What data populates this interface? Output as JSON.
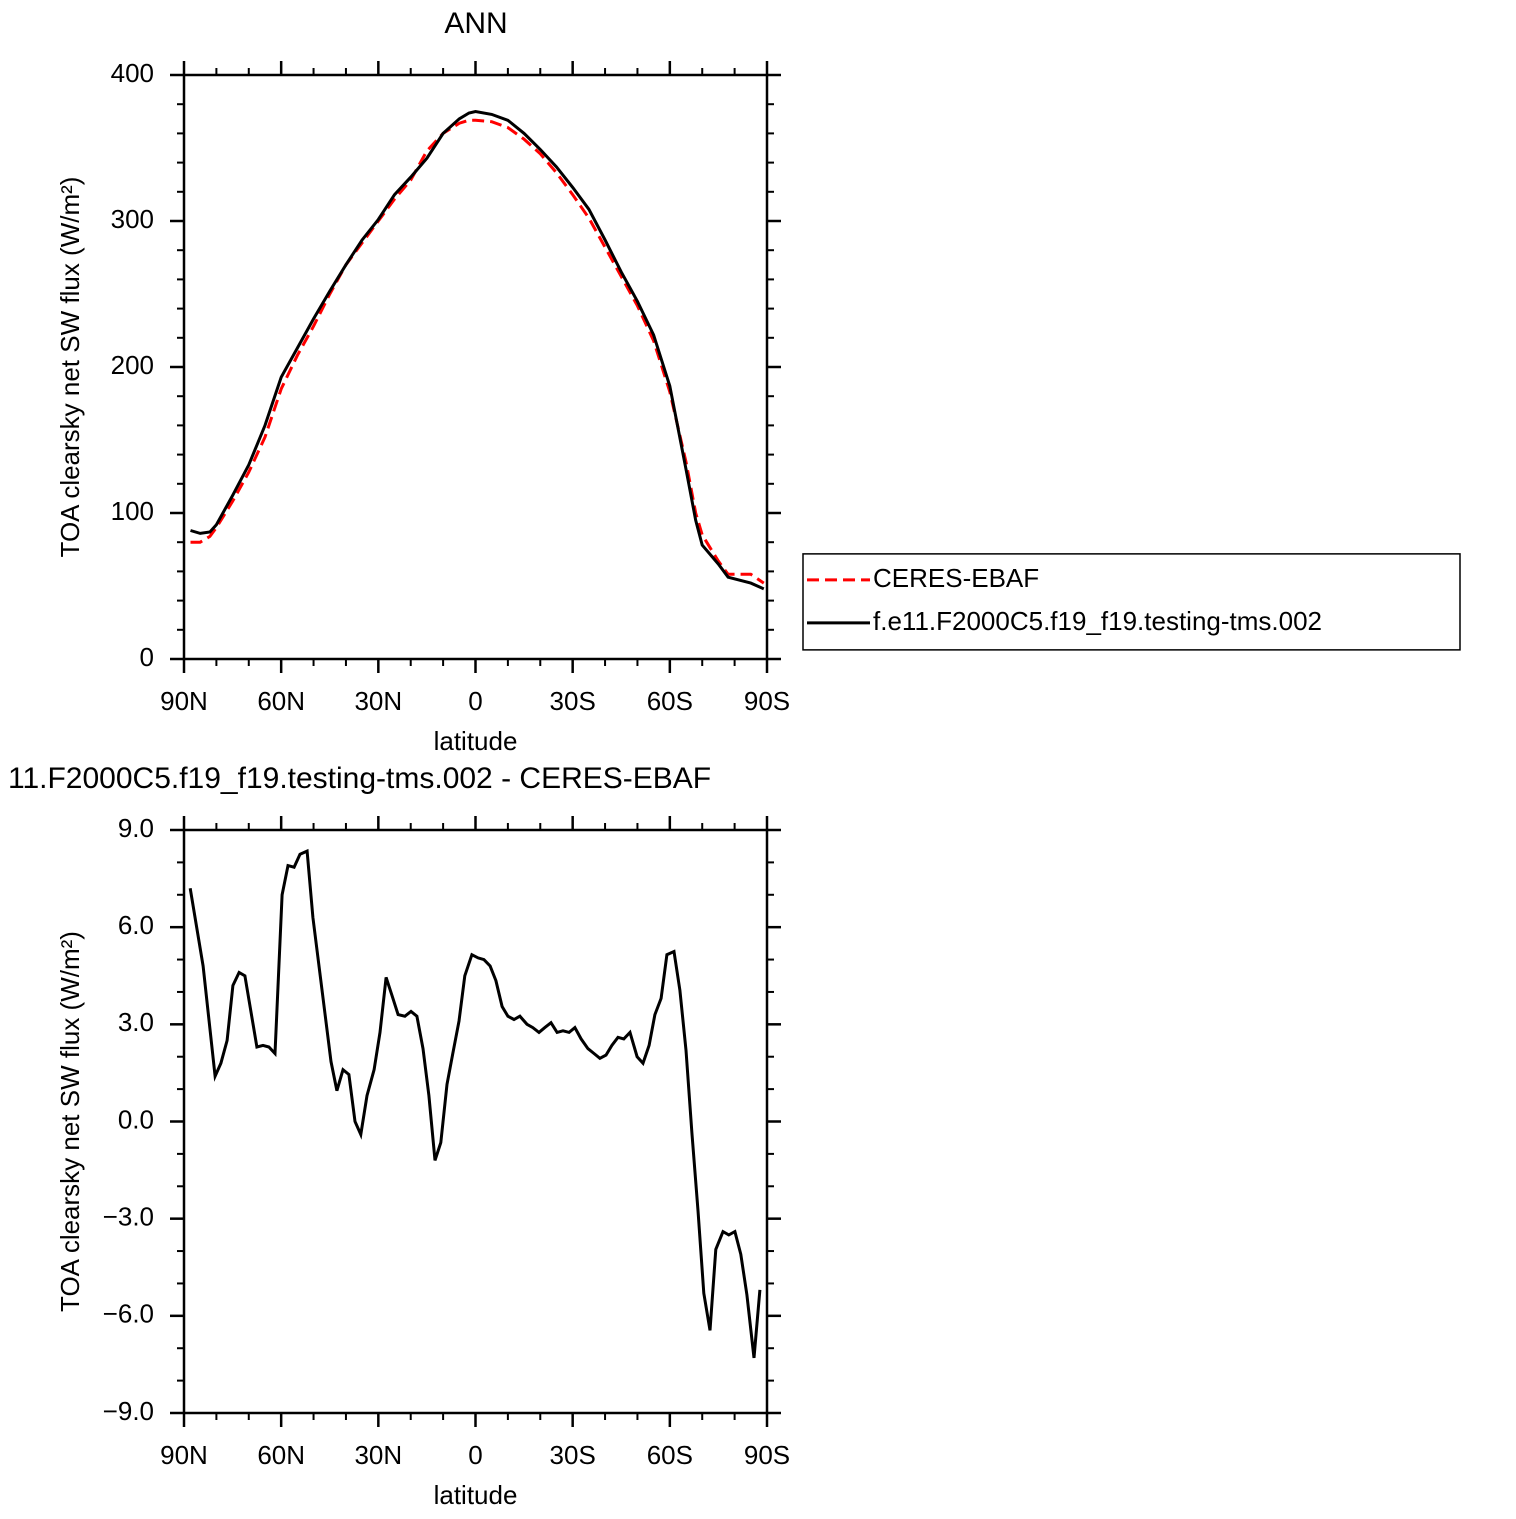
{
  "chart_data": [
    {
      "type": "line",
      "title": "ANN",
      "xlabel": "latitude",
      "ylabel": "TOA clearsky net SW flux (W/m²)",
      "x": [
        88,
        85,
        82,
        80,
        75,
        70,
        65,
        60,
        55,
        50,
        45,
        40,
        35,
        30,
        25,
        20,
        15,
        10,
        5,
        2,
        0,
        -5,
        -10,
        -15,
        -20,
        -25,
        -30,
        -35,
        -40,
        -45,
        -50,
        -55,
        -60,
        -65,
        -68,
        -70,
        -75,
        -78,
        -85,
        -89
      ],
      "series": [
        {
          "name": "CERES-EBAF",
          "color": "#ff0000",
          "linestyle": "dashed",
          "values": [
            80,
            80,
            84,
            90,
            108,
            128,
            152,
            185,
            208,
            228,
            250,
            270,
            285,
            300,
            315,
            328,
            348,
            360,
            367,
            369,
            369,
            368,
            364,
            356,
            346,
            333,
            318,
            302,
            282,
            262,
            242,
            218,
            183,
            135,
            100,
            85,
            67,
            58,
            58,
            52
          ]
        },
        {
          "name": "f.e11.F2000C5.f19_f19.testing-tms.002",
          "color": "#000000",
          "linestyle": "solid",
          "values": [
            88,
            86,
            87,
            92,
            112,
            133,
            160,
            193,
            213,
            233,
            252,
            270,
            287,
            301,
            318,
            330,
            343,
            360,
            370,
            374,
            375,
            373,
            369,
            360,
            349,
            337,
            323,
            308,
            287,
            265,
            245,
            222,
            187,
            130,
            95,
            78,
            65,
            56,
            52,
            48
          ]
        }
      ],
      "xlim": [
        90,
        -90
      ],
      "xticks": [
        {
          "value": 90,
          "label": "90N"
        },
        {
          "value": 60,
          "label": "60N"
        },
        {
          "value": 30,
          "label": "30N"
        },
        0,
        {
          "value": -30,
          "label": "30S"
        },
        {
          "value": -60,
          "label": "60S"
        },
        {
          "value": -90,
          "label": "90S"
        }
      ],
      "ylim": [
        0,
        400
      ],
      "yticks": [
        0,
        100,
        200,
        300,
        400
      ],
      "legend": "right"
    },
    {
      "type": "line",
      "title": "11.F2000C5.f19_f19.testing-tms.002 - CERES-EBAF",
      "xlabel": "latitude",
      "ylabel": "TOA clearsky net SW flux (W/m²)",
      "x": [
        88.1,
        84.1,
        80.4,
        78.6,
        76.7,
        74.9,
        73.0,
        71.2,
        67.5,
        65.6,
        63.8,
        61.9,
        59.7,
        57.9,
        56.0,
        54.2,
        52.0,
        50.2,
        46.5,
        44.6,
        42.8,
        40.9,
        39.1,
        37.2,
        35.4,
        33.5,
        31.3,
        29.5,
        27.6,
        25.8,
        23.9,
        21.8,
        19.9,
        18.1,
        16.2,
        14.4,
        12.5,
        10.7,
        8.8,
        7.0,
        5.1,
        3.3,
        1.1,
        -0.8,
        -2.6,
        -4.5,
        -6.3,
        -8.2,
        -10.0,
        -11.9,
        -13.7,
        -15.9,
        -17.7,
        -19.6,
        -21.4,
        -23.3,
        -25.2,
        -27.0,
        -28.9,
        -30.7,
        -32.6,
        -34.7,
        -36.6,
        -38.4,
        -40.3,
        -42.1,
        -44.0,
        -45.8,
        -47.7,
        -49.9,
        -51.7,
        -53.6,
        -55.4,
        -57.3,
        -59.1,
        -61.3,
        -63.1,
        -65.0,
        -66.8,
        -68.7,
        -70.5,
        -72.4,
        -74.2,
        -76.4,
        -78.2,
        -80.1,
        -81.9,
        -83.8,
        -86.0,
        -87.8
      ],
      "values": [
        7.2,
        4.8,
        1.4,
        1.8,
        2.5,
        4.2,
        4.6,
        4.5,
        2.3,
        2.35,
        2.3,
        2.1,
        7.0,
        7.9,
        7.85,
        8.25,
        8.35,
        6.3,
        3.35,
        1.85,
        0.95,
        1.6,
        1.45,
        0.0,
        -0.4,
        0.8,
        1.6,
        2.75,
        4.45,
        3.9,
        3.3,
        3.25,
        3.4,
        3.25,
        2.25,
        0.8,
        -1.2,
        -0.65,
        1.15,
        2.1,
        3.1,
        4.5,
        5.15,
        5.05,
        5.0,
        4.8,
        4.35,
        3.55,
        3.25,
        3.15,
        3.25,
        3.0,
        2.9,
        2.75,
        2.9,
        3.05,
        2.75,
        2.8,
        2.75,
        2.9,
        2.55,
        2.25,
        2.1,
        1.95,
        2.05,
        2.35,
        2.6,
        2.55,
        2.75,
        2.0,
        1.8,
        2.35,
        3.3,
        3.8,
        5.15,
        5.25,
        4.05,
        2.2,
        -0.35,
        -2.75,
        -5.3,
        -6.45,
        -3.95,
        -3.4,
        -3.5,
        -3.4,
        -4.1,
        -5.35,
        -7.3,
        -5.2
      ],
      "color": "#000000",
      "xlim": [
        90,
        -90
      ],
      "xticks": [
        {
          "value": 90,
          "label": "90N"
        },
        {
          "value": 60,
          "label": "60N"
        },
        {
          "value": 30,
          "label": "30N"
        },
        0,
        {
          "value": -30,
          "label": "30S"
        },
        {
          "value": -60,
          "label": "60S"
        },
        {
          "value": -90,
          "label": "90S"
        }
      ],
      "ylim": [
        -9,
        9
      ],
      "yticks": [
        {
          "value": -9,
          "label": "−9.0"
        },
        {
          "value": -6,
          "label": "−6.0"
        },
        {
          "value": -3,
          "label": "−3.0"
        },
        {
          "value": 0,
          "label": "0.0"
        },
        {
          "value": 3,
          "label": "3.0"
        },
        {
          "value": 6,
          "label": "6.0"
        },
        {
          "value": 9,
          "label": "9.0"
        }
      ]
    }
  ]
}
